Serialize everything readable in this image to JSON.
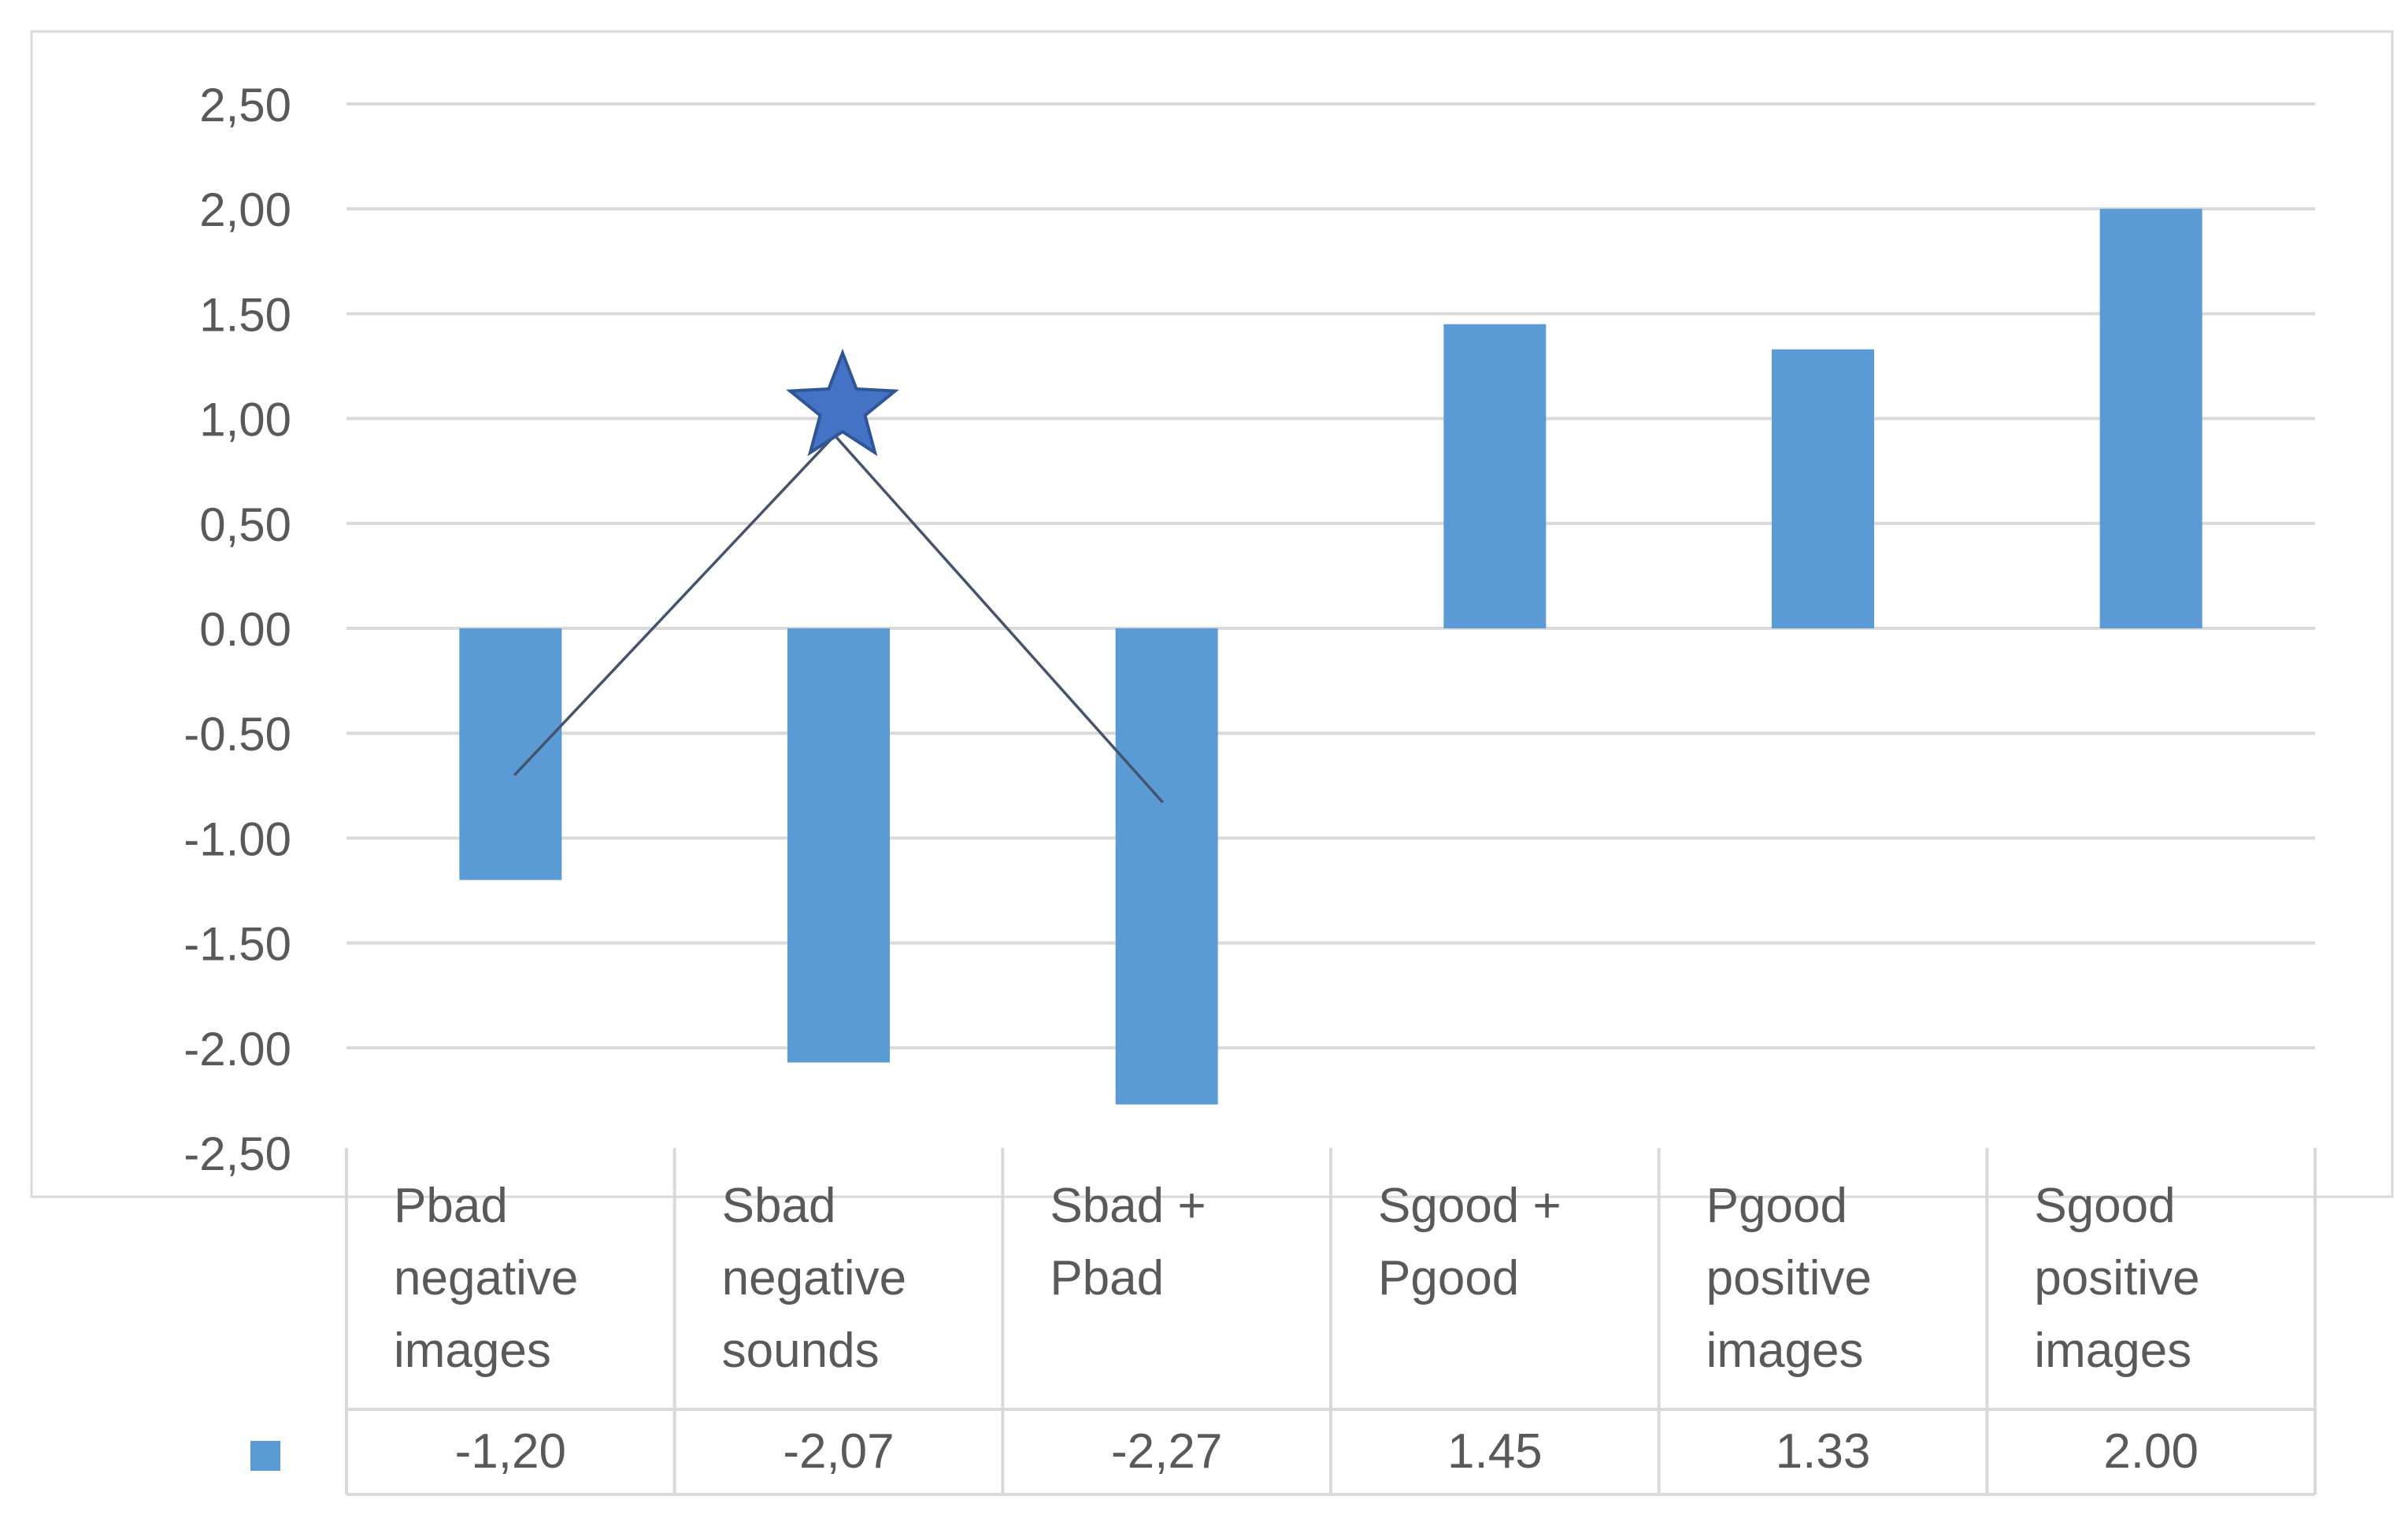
{
  "chart_data": {
    "type": "bar",
    "categories": [
      [
        "Pbad",
        "negative",
        "images"
      ],
      [
        "Sbad",
        "negative",
        "sounds"
      ],
      [
        "Sbad +",
        "Pbad"
      ],
      [
        "Sgood +",
        "Pgood"
      ],
      [
        "Pgood",
        "positive",
        "images"
      ],
      [
        "Sgood",
        "positive",
        "images"
      ]
    ],
    "values": [
      -1.2,
      -2.07,
      -2.27,
      1.45,
      1.33,
      2.0
    ],
    "value_labels": [
      "-1,20",
      "-2,07",
      "-2,27",
      "1.45",
      "1.33",
      "2.00"
    ],
    "y_ticks": [
      2.5,
      2.0,
      1.5,
      1.0,
      0.5,
      0.0,
      -0.5,
      -1.0,
      -1.5,
      -2.0,
      -2.5
    ],
    "y_tick_labels": [
      "2,50",
      "2,00",
      "1.50",
      "1,00",
      "0,50",
      "0.00",
      "-0.50",
      "-1.00",
      "-1.50",
      "-2.00",
      "-2,50"
    ],
    "ylim": [
      -2.5,
      2.5
    ],
    "grid": true,
    "data_table": true,
    "legend_marker": "square",
    "annotation": {
      "type": "star-with-peak-lines",
      "over_category_index": 1,
      "star_value": 1.05,
      "peak_value": 0.92,
      "left_end_value": -0.7,
      "right_end_value": -0.83
    },
    "colors": {
      "bar": "#5b9bd5",
      "grid": "#d9d9d9",
      "axis_text": "#595959",
      "table_border": "#d9d9d9",
      "star_fill": "#4472c4",
      "star_stroke": "#2f5597",
      "line": "#44546a"
    }
  }
}
